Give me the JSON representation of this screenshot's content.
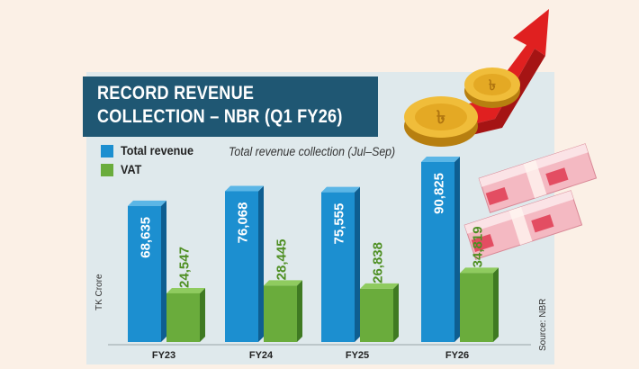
{
  "header": {
    "title_line1": "RECORD REVENUE",
    "title_line2": "COLLECTION – NBR (Q1 FY26)"
  },
  "legend": {
    "total": "Total revenue",
    "vat": "VAT"
  },
  "subtitle": "Total revenue collection (Jul–Sep)",
  "unit_label": "TK Crore",
  "source_label": "Source: NBR",
  "colors": {
    "total": "#1c8fd0",
    "vat": "#6aac3c",
    "title_bg": "#1f5773",
    "panel_bg": "#dfe9ec",
    "page_bg": "#fbf0e6"
  },
  "chart_data": {
    "type": "bar",
    "title": "RECORD REVENUE COLLECTION – NBR (Q1 FY26)",
    "subtitle": "Total revenue collection (Jul–Sep)",
    "ylabel": "TK Crore",
    "categories": [
      "FY23",
      "FY24",
      "FY25",
      "FY26"
    ],
    "series": [
      {
        "name": "Total revenue",
        "values": [
          68635,
          76068,
          75555,
          90825
        ],
        "labels": [
          "68,635",
          "76,068",
          "75,555",
          "90,825"
        ]
      },
      {
        "name": "VAT",
        "values": [
          24547,
          28445,
          26838,
          34819
        ],
        "labels": [
          "24,547",
          "28,445",
          "26,838",
          "34,819"
        ]
      }
    ],
    "ylim": [
      0,
      100000
    ],
    "legend": "top-left",
    "grid": false
  }
}
